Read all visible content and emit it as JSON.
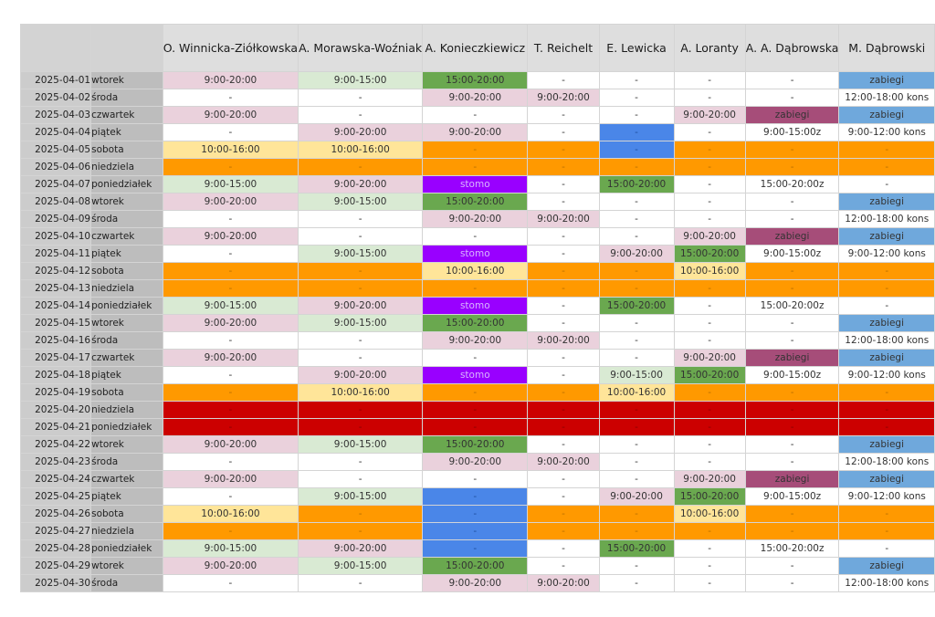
{
  "headers": [
    "",
    "",
    "O. Winnicka-Ziółkowska",
    "A. Morawska-Woźniak",
    "A. Konieczkiewicz",
    "T. Reichelt",
    "E. Lewicka",
    "A. Loranty",
    "A. A. Dąbrowska",
    "M. Dąbrowski"
  ],
  "colors": {
    "pink": "#ead1dc",
    "green": "#d9ead3",
    "darkgreen": "#6aa84f",
    "yellow": "#ffe599",
    "orange": "#ff9900",
    "purple": "#9900ff",
    "blue": "#4a86e8",
    "lightblue": "#6fa8dc",
    "plum": "#a64d79",
    "red": "#cc0000",
    "white": "#ffffff"
  },
  "rows": [
    {
      "date": "2025-04-01",
      "day": "wtorek",
      "cells": [
        [
          "9:00-20:00",
          "pink"
        ],
        [
          "9:00-15:00",
          "green"
        ],
        [
          "15:00-20:00",
          "darkgreen"
        ],
        [
          "-",
          "white"
        ],
        [
          "-",
          "white"
        ],
        [
          "-",
          "white"
        ],
        [
          "-",
          "white"
        ],
        [
          "zabiegi",
          "lightblue"
        ]
      ]
    },
    {
      "date": "2025-04-02",
      "day": "środa",
      "cells": [
        [
          "-",
          "white"
        ],
        [
          "-",
          "white"
        ],
        [
          "9:00-20:00",
          "pink"
        ],
        [
          "9:00-20:00",
          "pink"
        ],
        [
          "-",
          "white"
        ],
        [
          "-",
          "white"
        ],
        [
          "-",
          "white"
        ],
        [
          "12:00-18:00 kons",
          "white"
        ]
      ]
    },
    {
      "date": "2025-04-03",
      "day": "czwartek",
      "cells": [
        [
          "9:00-20:00",
          "pink"
        ],
        [
          "-",
          "white"
        ],
        [
          "-",
          "white"
        ],
        [
          "-",
          "white"
        ],
        [
          "-",
          "white"
        ],
        [
          "9:00-20:00",
          "pink"
        ],
        [
          "zabiegi",
          "plum"
        ],
        [
          "zabiegi",
          "lightblue"
        ]
      ]
    },
    {
      "date": "2025-04-04",
      "day": "piątek",
      "cells": [
        [
          "-",
          "white"
        ],
        [
          "9:00-20:00",
          "pink"
        ],
        [
          "9:00-20:00",
          "pink"
        ],
        [
          "-",
          "white"
        ],
        [
          "-",
          "blue"
        ],
        [
          "-",
          "white"
        ],
        [
          "9:00-15:00z",
          "white"
        ],
        [
          "9:00-12:00 kons",
          "white"
        ]
      ]
    },
    {
      "date": "2025-04-05",
      "day": "sobota",
      "cells": [
        [
          "10:00-16:00",
          "yellow"
        ],
        [
          "10:00-16:00",
          "yellow"
        ],
        [
          "-",
          "orange"
        ],
        [
          "-",
          "orange"
        ],
        [
          "-",
          "blue"
        ],
        [
          "-",
          "orange"
        ],
        [
          "-",
          "orange"
        ],
        [
          "-",
          "orange"
        ]
      ]
    },
    {
      "date": "2025-04-06",
      "day": "niedziela",
      "cells": [
        [
          "-",
          "orange"
        ],
        [
          "-",
          "orange"
        ],
        [
          "-",
          "orange"
        ],
        [
          "-",
          "orange"
        ],
        [
          "-",
          "orange"
        ],
        [
          "-",
          "orange"
        ],
        [
          "-",
          "orange"
        ],
        [
          "-",
          "orange"
        ]
      ]
    },
    {
      "date": "2025-04-07",
      "day": "poniedziałek",
      "cells": [
        [
          "9:00-15:00",
          "green"
        ],
        [
          "9:00-20:00",
          "pink"
        ],
        [
          "stomo",
          "purple"
        ],
        [
          "-",
          "white"
        ],
        [
          "15:00-20:00",
          "darkgreen"
        ],
        [
          "-",
          "white"
        ],
        [
          "15:00-20:00z",
          "white"
        ],
        [
          "-",
          "white"
        ]
      ]
    },
    {
      "date": "2025-04-08",
      "day": "wtorek",
      "cells": [
        [
          "9:00-20:00",
          "pink"
        ],
        [
          "9:00-15:00",
          "green"
        ],
        [
          "15:00-20:00",
          "darkgreen"
        ],
        [
          "-",
          "white"
        ],
        [
          "-",
          "white"
        ],
        [
          "-",
          "white"
        ],
        [
          "-",
          "white"
        ],
        [
          "zabiegi",
          "lightblue"
        ]
      ]
    },
    {
      "date": "2025-04-09",
      "day": "środa",
      "cells": [
        [
          "-",
          "white"
        ],
        [
          "-",
          "white"
        ],
        [
          "9:00-20:00",
          "pink"
        ],
        [
          "9:00-20:00",
          "pink"
        ],
        [
          "-",
          "white"
        ],
        [
          "-",
          "white"
        ],
        [
          "-",
          "white"
        ],
        [
          "12:00-18:00 kons",
          "white"
        ]
      ]
    },
    {
      "date": "2025-04-10",
      "day": "czwartek",
      "cells": [
        [
          "9:00-20:00",
          "pink"
        ],
        [
          "-",
          "white"
        ],
        [
          "-",
          "white"
        ],
        [
          "-",
          "white"
        ],
        [
          "-",
          "white"
        ],
        [
          "9:00-20:00",
          "pink"
        ],
        [
          "zabiegi",
          "plum"
        ],
        [
          "zabiegi",
          "lightblue"
        ]
      ]
    },
    {
      "date": "2025-04-11",
      "day": "piątek",
      "cells": [
        [
          "-",
          "white"
        ],
        [
          "9:00-15:00",
          "green"
        ],
        [
          "stomo",
          "purple"
        ],
        [
          "-",
          "white"
        ],
        [
          "9:00-20:00",
          "pink"
        ],
        [
          "15:00-20:00",
          "darkgreen"
        ],
        [
          "9:00-15:00z",
          "white"
        ],
        [
          "9:00-12:00 kons",
          "white"
        ]
      ]
    },
    {
      "date": "2025-04-12",
      "day": "sobota",
      "cells": [
        [
          "-",
          "orange"
        ],
        [
          "-",
          "orange"
        ],
        [
          "10:00-16:00",
          "yellow"
        ],
        [
          "-",
          "orange"
        ],
        [
          "-",
          "orange"
        ],
        [
          "10:00-16:00",
          "yellow"
        ],
        [
          "-",
          "orange"
        ],
        [
          "-",
          "orange"
        ]
      ]
    },
    {
      "date": "2025-04-13",
      "day": "niedziela",
      "cells": [
        [
          "-",
          "orange"
        ],
        [
          "-",
          "orange"
        ],
        [
          "-",
          "orange"
        ],
        [
          "-",
          "orange"
        ],
        [
          "-",
          "orange"
        ],
        [
          "-",
          "orange"
        ],
        [
          "-",
          "orange"
        ],
        [
          "-",
          "orange"
        ]
      ]
    },
    {
      "date": "2025-04-14",
      "day": "poniedziałek",
      "cells": [
        [
          "9:00-15:00",
          "green"
        ],
        [
          "9:00-20:00",
          "pink"
        ],
        [
          "stomo",
          "purple"
        ],
        [
          "-",
          "white"
        ],
        [
          "15:00-20:00",
          "darkgreen"
        ],
        [
          "-",
          "white"
        ],
        [
          "15:00-20:00z",
          "white"
        ],
        [
          "-",
          "white"
        ]
      ]
    },
    {
      "date": "2025-04-15",
      "day": "wtorek",
      "cells": [
        [
          "9:00-20:00",
          "pink"
        ],
        [
          "9:00-15:00",
          "green"
        ],
        [
          "15:00-20:00",
          "darkgreen"
        ],
        [
          "-",
          "white"
        ],
        [
          "-",
          "white"
        ],
        [
          "-",
          "white"
        ],
        [
          "-",
          "white"
        ],
        [
          "zabiegi",
          "lightblue"
        ]
      ]
    },
    {
      "date": "2025-04-16",
      "day": "środa",
      "cells": [
        [
          "-",
          "white"
        ],
        [
          "-",
          "white"
        ],
        [
          "9:00-20:00",
          "pink"
        ],
        [
          "9:00-20:00",
          "pink"
        ],
        [
          "-",
          "white"
        ],
        [
          "-",
          "white"
        ],
        [
          "-",
          "white"
        ],
        [
          "12:00-18:00 kons",
          "white"
        ]
      ]
    },
    {
      "date": "2025-04-17",
      "day": "czwartek",
      "cells": [
        [
          "9:00-20:00",
          "pink"
        ],
        [
          "-",
          "white"
        ],
        [
          "-",
          "white"
        ],
        [
          "-",
          "white"
        ],
        [
          "-",
          "white"
        ],
        [
          "9:00-20:00",
          "pink"
        ],
        [
          "zabiegi",
          "plum"
        ],
        [
          "zabiegi",
          "lightblue"
        ]
      ]
    },
    {
      "date": "2025-04-18",
      "day": "piątek",
      "cells": [
        [
          "-",
          "white"
        ],
        [
          "9:00-20:00",
          "pink"
        ],
        [
          "stomo",
          "purple"
        ],
        [
          "-",
          "white"
        ],
        [
          "9:00-15:00",
          "green"
        ],
        [
          "15:00-20:00",
          "darkgreen"
        ],
        [
          "9:00-15:00z",
          "white"
        ],
        [
          "9:00-12:00 kons",
          "white"
        ]
      ]
    },
    {
      "date": "2025-04-19",
      "day": "sobota",
      "cells": [
        [
          "-",
          "orange"
        ],
        [
          "10:00-16:00",
          "yellow"
        ],
        [
          "-",
          "orange"
        ],
        [
          "-",
          "orange"
        ],
        [
          "10:00-16:00",
          "yellow"
        ],
        [
          "-",
          "orange"
        ],
        [
          "-",
          "orange"
        ],
        [
          "-",
          "orange"
        ]
      ]
    },
    {
      "date": "2025-04-20",
      "day": "niedziela",
      "cells": [
        [
          "-",
          "red"
        ],
        [
          "-",
          "red"
        ],
        [
          "-",
          "red"
        ],
        [
          "-",
          "red"
        ],
        [
          "-",
          "red"
        ],
        [
          "-",
          "red"
        ],
        [
          "-",
          "red"
        ],
        [
          "-",
          "red"
        ]
      ]
    },
    {
      "date": "2025-04-21",
      "day": "poniedziałek",
      "cells": [
        [
          "-",
          "red"
        ],
        [
          "-",
          "red"
        ],
        [
          "-",
          "red"
        ],
        [
          "-",
          "red"
        ],
        [
          "-",
          "red"
        ],
        [
          "-",
          "red"
        ],
        [
          "-",
          "red"
        ],
        [
          "-",
          "red"
        ]
      ]
    },
    {
      "date": "2025-04-22",
      "day": "wtorek",
      "cells": [
        [
          "9:00-20:00",
          "pink"
        ],
        [
          "9:00-15:00",
          "green"
        ],
        [
          "15:00-20:00",
          "darkgreen"
        ],
        [
          "-",
          "white"
        ],
        [
          "-",
          "white"
        ],
        [
          "-",
          "white"
        ],
        [
          "-",
          "white"
        ],
        [
          "zabiegi",
          "lightblue"
        ]
      ]
    },
    {
      "date": "2025-04-23",
      "day": "środa",
      "cells": [
        [
          "-",
          "white"
        ],
        [
          "-",
          "white"
        ],
        [
          "9:00-20:00",
          "pink"
        ],
        [
          "9:00-20:00",
          "pink"
        ],
        [
          "-",
          "white"
        ],
        [
          "-",
          "white"
        ],
        [
          "-",
          "white"
        ],
        [
          "12:00-18:00 kons",
          "white"
        ]
      ]
    },
    {
      "date": "2025-04-24",
      "day": "czwartek",
      "cells": [
        [
          "9:00-20:00",
          "pink"
        ],
        [
          "-",
          "white"
        ],
        [
          "-",
          "white"
        ],
        [
          "-",
          "white"
        ],
        [
          "-",
          "white"
        ],
        [
          "9:00-20:00",
          "pink"
        ],
        [
          "zabiegi",
          "plum"
        ],
        [
          "zabiegi",
          "lightblue"
        ]
      ]
    },
    {
      "date": "2025-04-25",
      "day": "piątek",
      "cells": [
        [
          "-",
          "white"
        ],
        [
          "9:00-15:00",
          "green"
        ],
        [
          "-",
          "blue"
        ],
        [
          "-",
          "white"
        ],
        [
          "9:00-20:00",
          "pink"
        ],
        [
          "15:00-20:00",
          "darkgreen"
        ],
        [
          "9:00-15:00z",
          "white"
        ],
        [
          "9:00-12:00 kons",
          "white"
        ]
      ]
    },
    {
      "date": "2025-04-26",
      "day": "sobota",
      "cells": [
        [
          "10:00-16:00",
          "yellow"
        ],
        [
          "-",
          "orange"
        ],
        [
          "-",
          "blue"
        ],
        [
          "-",
          "orange"
        ],
        [
          "-",
          "orange"
        ],
        [
          "10:00-16:00",
          "yellow"
        ],
        [
          "-",
          "orange"
        ],
        [
          "-",
          "orange"
        ]
      ]
    },
    {
      "date": "2025-04-27",
      "day": "niedziela",
      "cells": [
        [
          "-",
          "orange"
        ],
        [
          "-",
          "orange"
        ],
        [
          "-",
          "blue"
        ],
        [
          "-",
          "orange"
        ],
        [
          "-",
          "orange"
        ],
        [
          "-",
          "orange"
        ],
        [
          "-",
          "orange"
        ],
        [
          "-",
          "orange"
        ]
      ]
    },
    {
      "date": "2025-04-28",
      "day": "poniedziałek",
      "cells": [
        [
          "9:00-15:00",
          "green"
        ],
        [
          "9:00-20:00",
          "pink"
        ],
        [
          "-",
          "blue"
        ],
        [
          "-",
          "white"
        ],
        [
          "15:00-20:00",
          "darkgreen"
        ],
        [
          "-",
          "white"
        ],
        [
          "15:00-20:00z",
          "white"
        ],
        [
          "-",
          "white"
        ]
      ]
    },
    {
      "date": "2025-04-29",
      "day": "wtorek",
      "cells": [
        [
          "9:00-20:00",
          "pink"
        ],
        [
          "9:00-15:00",
          "green"
        ],
        [
          "15:00-20:00",
          "darkgreen"
        ],
        [
          "-",
          "white"
        ],
        [
          "-",
          "white"
        ],
        [
          "-",
          "white"
        ],
        [
          "-",
          "white"
        ],
        [
          "zabiegi",
          "lightblue"
        ]
      ]
    },
    {
      "date": "2025-04-30",
      "day": "środa",
      "cells": [
        [
          "-",
          "white"
        ],
        [
          "-",
          "white"
        ],
        [
          "9:00-20:00",
          "pink"
        ],
        [
          "9:00-20:00",
          "pink"
        ],
        [
          "-",
          "white"
        ],
        [
          "-",
          "white"
        ],
        [
          "-",
          "white"
        ],
        [
          "12:00-18:00 kons",
          "white"
        ]
      ]
    }
  ]
}
